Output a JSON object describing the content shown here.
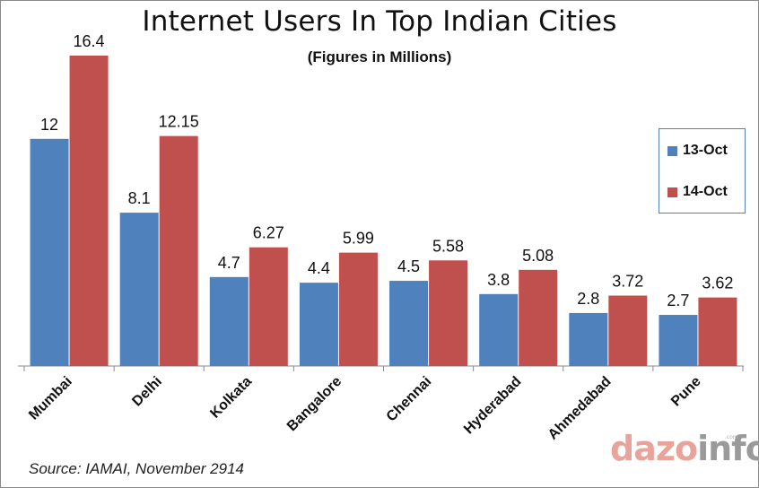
{
  "chart_data": {
    "type": "bar",
    "title": "Internet Users In Top Indian Cities",
    "subtitle": "(Figures in Millions)",
    "categories": [
      "Mumbai",
      "Delhi",
      "Kolkata",
      "Bangalore",
      "Chennai",
      "Hyderabad",
      "Ahmedabad",
      "Pune"
    ],
    "series": [
      {
        "name": "13-Oct",
        "color": "#4f81bd",
        "values": [
          12,
          8.1,
          4.7,
          4.4,
          4.5,
          3.8,
          2.8,
          2.7
        ],
        "labels": [
          "12",
          "8.1",
          "4.7",
          "4.4",
          "4.5",
          "3.8",
          "2.8",
          "2.7"
        ]
      },
      {
        "name": "14-Oct",
        "color": "#c0504d",
        "values": [
          16.4,
          12.15,
          6.27,
          5.99,
          5.58,
          5.08,
          3.72,
          3.62
        ],
        "labels": [
          "16.4",
          "12.15",
          "6.27",
          "5.99",
          "5.58",
          "5.08",
          "3.72",
          "3.62"
        ]
      }
    ],
    "xlabel": "",
    "ylabel": "",
    "ylim": [
      0,
      17
    ],
    "grid": false,
    "legend_position": "right"
  },
  "source": "Source: IAMAI, November 2914",
  "logo": {
    "main": "dazo",
    "tail": "info",
    "suffix": ".com"
  }
}
